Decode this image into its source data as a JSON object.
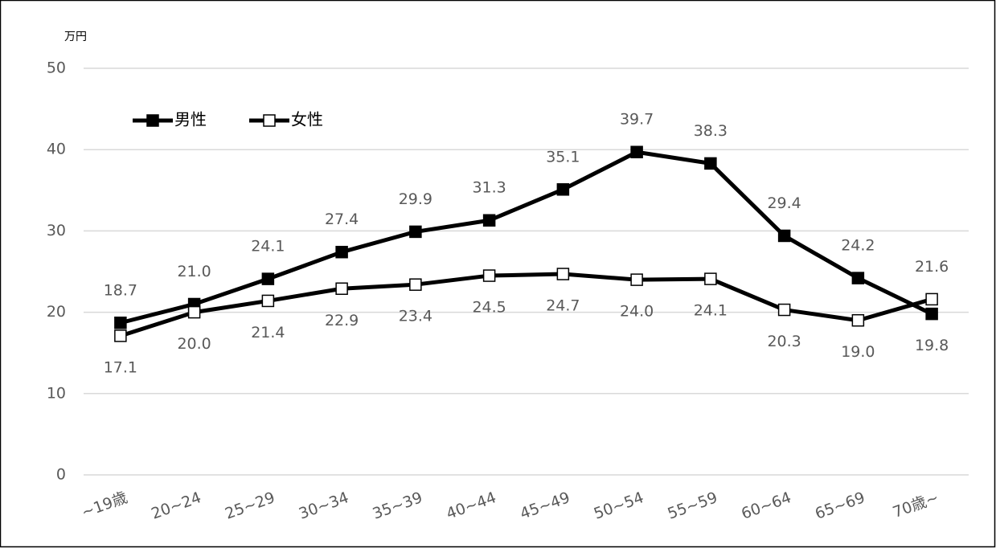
{
  "chart_data": {
    "type": "line",
    "y_unit": "万円",
    "categories": [
      "~19歳",
      "20~24",
      "25~29",
      "30~34",
      "35~39",
      "40~44",
      "45~49",
      "50~54",
      "55~59",
      "60~64",
      "65~69",
      "70歳~"
    ],
    "series": [
      {
        "name": "男性",
        "color": "#000000",
        "marker_fill": "#000000",
        "values": [
          18.7,
          21.0,
          24.1,
          27.4,
          29.9,
          31.3,
          35.1,
          39.7,
          38.3,
          29.4,
          24.2,
          19.8
        ],
        "value_labels": [
          "18.7",
          "21.0",
          "24.1",
          "27.4",
          "29.9",
          "31.3",
          "35.1",
          "39.7",
          "38.3",
          "29.4",
          "24.2",
          "19.8"
        ]
      },
      {
        "name": "女性",
        "color": "#000000",
        "marker_fill": "#ffffff",
        "values": [
          17.1,
          20.0,
          21.4,
          22.9,
          23.4,
          24.5,
          24.7,
          24.0,
          24.1,
          20.3,
          19.0,
          21.6
        ],
        "value_labels": [
          "17.1",
          "20.0",
          "21.4",
          "22.9",
          "23.4",
          "24.5",
          "24.7",
          "24.0",
          "24.1",
          "20.3",
          "19.0",
          "21.6"
        ]
      }
    ],
    "ylim": [
      0,
      50
    ],
    "yticks": [
      0,
      10,
      20,
      30,
      40,
      50
    ],
    "grid": true,
    "legend": "upper left"
  }
}
